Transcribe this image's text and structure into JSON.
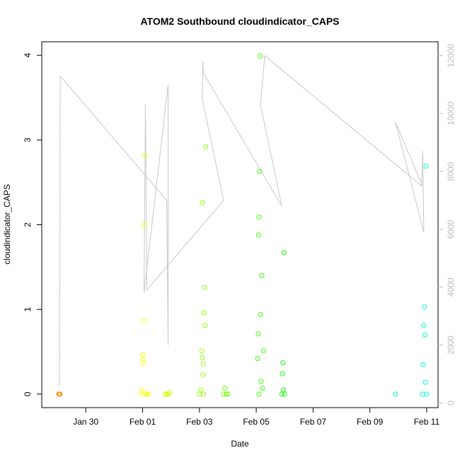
{
  "chart_data": {
    "type": "scatter",
    "title": "ATOM2 Southbound cloudindicator_CAPS",
    "xlabel": "Date",
    "ylabel": "cloudindicator_CAPS",
    "x_ticks": [
      "Jan 30",
      "Feb 01",
      "Feb 03",
      "Feb 05",
      "Feb 07",
      "Feb 09",
      "Feb 11"
    ],
    "y_ticks": [
      "0",
      "1",
      "2",
      "3",
      "4"
    ],
    "y2_ticks": [
      "0",
      "2000",
      "4000",
      "6000",
      "8000",
      "10000",
      "12000"
    ],
    "xlim_days": [
      -1.55,
      12.4
    ],
    "ylim": [
      -0.16,
      4.16
    ],
    "y2lim": [
      -160,
      12480
    ],
    "grid": false,
    "legend": "none",
    "series": [
      {
        "color_scale": "time (orange to cyan)",
        "points": [
          {
            "x": -0.95,
            "y": 0.0
          },
          {
            "x": -0.93,
            "y": 0.0
          },
          {
            "x": -0.91,
            "y": 0.0
          },
          {
            "x": 1.95,
            "y": 0.0
          },
          {
            "x": 1.98,
            "y": 0.05
          },
          {
            "x": 2.0,
            "y": 0.41
          },
          {
            "x": 2.02,
            "y": 0.47
          },
          {
            "x": 2.03,
            "y": 0.37
          },
          {
            "x": 2.05,
            "y": 0.87
          },
          {
            "x": 2.07,
            "y": 2.0
          },
          {
            "x": 2.09,
            "y": 2.82
          },
          {
            "x": 2.1,
            "y": 0.0
          },
          {
            "x": 2.15,
            "y": 0.0
          },
          {
            "x": 2.2,
            "y": 0.0
          },
          {
            "x": 2.8,
            "y": 0.0
          },
          {
            "x": 2.85,
            "y": 0.0
          },
          {
            "x": 2.9,
            "y": 0.0
          },
          {
            "x": 2.95,
            "y": 0.02
          },
          {
            "x": 4.0,
            "y": 0.0
          },
          {
            "x": 4.05,
            "y": 0.05
          },
          {
            "x": 4.08,
            "y": 0.51
          },
          {
            "x": 4.1,
            "y": 0.43
          },
          {
            "x": 4.12,
            "y": 0.23
          },
          {
            "x": 4.14,
            "y": 0.36
          },
          {
            "x": 4.1,
            "y": 2.26
          },
          {
            "x": 4.16,
            "y": 0.96
          },
          {
            "x": 4.18,
            "y": 1.26
          },
          {
            "x": 4.2,
            "y": 0.81
          },
          {
            "x": 4.22,
            "y": 2.92
          },
          {
            "x": 4.15,
            "y": 0.0
          },
          {
            "x": 4.85,
            "y": 0.0
          },
          {
            "x": 4.9,
            "y": 0.07
          },
          {
            "x": 4.95,
            "y": 0.0
          },
          {
            "x": 5.0,
            "y": 0.0
          },
          {
            "x": 6.05,
            "y": 0.42
          },
          {
            "x": 6.07,
            "y": 0.71
          },
          {
            "x": 6.08,
            "y": 1.88
          },
          {
            "x": 6.1,
            "y": 2.09
          },
          {
            "x": 6.12,
            "y": 2.63
          },
          {
            "x": 6.14,
            "y": 3.99
          },
          {
            "x": 6.15,
            "y": 0.94
          },
          {
            "x": 6.17,
            "y": 0.15
          },
          {
            "x": 6.2,
            "y": 1.4
          },
          {
            "x": 6.22,
            "y": 0.07
          },
          {
            "x": 6.25,
            "y": 0.51
          },
          {
            "x": 6.1,
            "y": 0.0
          },
          {
            "x": 6.9,
            "y": 0.0
          },
          {
            "x": 6.92,
            "y": 0.24
          },
          {
            "x": 6.94,
            "y": 0.37
          },
          {
            "x": 6.96,
            "y": 0.05
          },
          {
            "x": 6.98,
            "y": 1.67
          },
          {
            "x": 7.0,
            "y": 0.0
          },
          {
            "x": 10.9,
            "y": 0.0
          },
          {
            "x": 11.85,
            "y": 0.0
          },
          {
            "x": 11.88,
            "y": 0.35
          },
          {
            "x": 11.9,
            "y": 0.81
          },
          {
            "x": 11.92,
            "y": 1.03
          },
          {
            "x": 11.94,
            "y": 0.7
          },
          {
            "x": 11.96,
            "y": 0.14
          },
          {
            "x": 11.98,
            "y": 2.69
          },
          {
            "x": 12.0,
            "y": 0.0
          }
        ]
      },
      {
        "name": "",
        "axis": "right",
        "color": "#c8c8c8",
        "line": [
          {
            "x": -0.92,
            "y2": 600
          },
          {
            "x": -0.9,
            "y2": 11300
          },
          {
            "x": 2.85,
            "y2": 7000
          },
          {
            "x": 2.9,
            "y2": 2000
          },
          {
            "x": 2.9,
            "y2": 11000
          },
          {
            "x": 2.05,
            "y2": 3800
          },
          {
            "x": 2.1,
            "y2": 10300
          },
          {
            "x": 2.15,
            "y2": 3900
          },
          {
            "x": 4.85,
            "y2": 7000
          },
          {
            "x": 4.1,
            "y2": 10500
          },
          {
            "x": 4.12,
            "y2": 11800
          },
          {
            "x": 4.14,
            "y2": 11400
          },
          {
            "x": 6.9,
            "y2": 6800
          },
          {
            "x": 6.15,
            "y2": 10300
          },
          {
            "x": 6.3,
            "y2": 12000
          },
          {
            "x": 11.82,
            "y2": 7500
          },
          {
            "x": 11.86,
            "y2": 8700
          },
          {
            "x": 11.9,
            "y2": 5900
          },
          {
            "x": 10.9,
            "y2": 9700
          },
          {
            "x": 11.85,
            "y2": 7500
          }
        ]
      }
    ]
  }
}
